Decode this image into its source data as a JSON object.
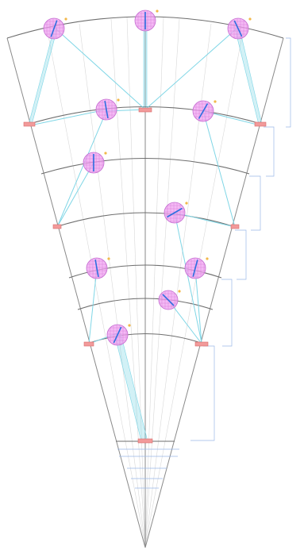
{
  "figure": {
    "type": "fan-layout-diagram",
    "colors": {
      "arc": "#6e6e6e",
      "link": "#7fd6e6",
      "node": "#f0a3f2",
      "needle": "#2b6fe0",
      "anchor": "#f29a9a",
      "dimension": "#9ab7e8"
    },
    "dimension_labels": [
      "",
      "",
      "",
      "",
      "",
      ""
    ]
  }
}
